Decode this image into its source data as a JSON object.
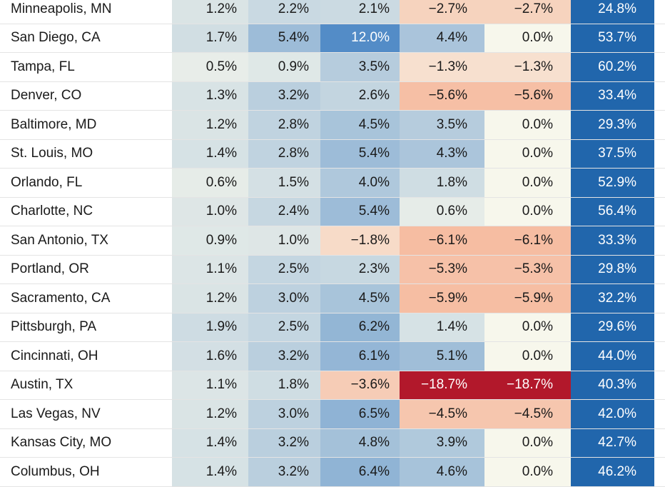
{
  "chart_data": {
    "type": "table",
    "rows": [
      {
        "name": "Minneapolis, MN",
        "values": [
          1.2,
          2.2,
          2.1,
          -2.7,
          -2.7,
          24.8
        ]
      },
      {
        "name": "San Diego, CA",
        "values": [
          1.7,
          5.4,
          12.0,
          4.4,
          0.0,
          53.7
        ]
      },
      {
        "name": "Tampa, FL",
        "values": [
          0.5,
          0.9,
          3.5,
          -1.3,
          -1.3,
          60.2
        ]
      },
      {
        "name": "Denver, CO",
        "values": [
          1.3,
          3.2,
          2.6,
          -5.6,
          -5.6,
          33.4
        ]
      },
      {
        "name": "Baltimore, MD",
        "values": [
          1.2,
          2.8,
          4.5,
          3.5,
          0.0,
          29.3
        ]
      },
      {
        "name": "St. Louis, MO",
        "values": [
          1.4,
          2.8,
          5.4,
          4.3,
          0.0,
          37.5
        ]
      },
      {
        "name": "Orlando, FL",
        "values": [
          0.6,
          1.5,
          4.0,
          1.8,
          0.0,
          52.9
        ]
      },
      {
        "name": "Charlotte, NC",
        "values": [
          1.0,
          2.4,
          5.4,
          0.6,
          0.0,
          56.4
        ]
      },
      {
        "name": "San Antonio, TX",
        "values": [
          0.9,
          1.0,
          -1.8,
          -6.1,
          -6.1,
          33.3
        ]
      },
      {
        "name": "Portland, OR",
        "values": [
          1.1,
          2.5,
          2.3,
          -5.3,
          -5.3,
          29.8
        ]
      },
      {
        "name": "Sacramento, CA",
        "values": [
          1.2,
          3.0,
          4.5,
          -5.9,
          -5.9,
          32.2
        ]
      },
      {
        "name": "Pittsburgh, PA",
        "values": [
          1.9,
          2.5,
          6.2,
          1.4,
          0.0,
          29.6
        ]
      },
      {
        "name": "Cincinnati, OH",
        "values": [
          1.6,
          3.2,
          6.1,
          5.1,
          0.0,
          44.0
        ]
      },
      {
        "name": "Austin, TX",
        "values": [
          1.1,
          1.8,
          -3.6,
          -18.7,
          -18.7,
          40.3
        ]
      },
      {
        "name": "Las Vegas, NV",
        "values": [
          1.2,
          3.0,
          6.5,
          -4.5,
          -4.5,
          42.0
        ]
      },
      {
        "name": "Kansas City, MO",
        "values": [
          1.4,
          3.2,
          4.8,
          3.9,
          0.0,
          42.7
        ]
      },
      {
        "name": "Columbus, OH",
        "values": [
          1.4,
          3.2,
          6.4,
          4.6,
          0.0,
          46.2
        ]
      }
    ],
    "last_column_color": "#2166ac",
    "positive_color": "#4a86c5",
    "negative_color": "#b2182b",
    "neutral_color": "#f7f7ec"
  }
}
